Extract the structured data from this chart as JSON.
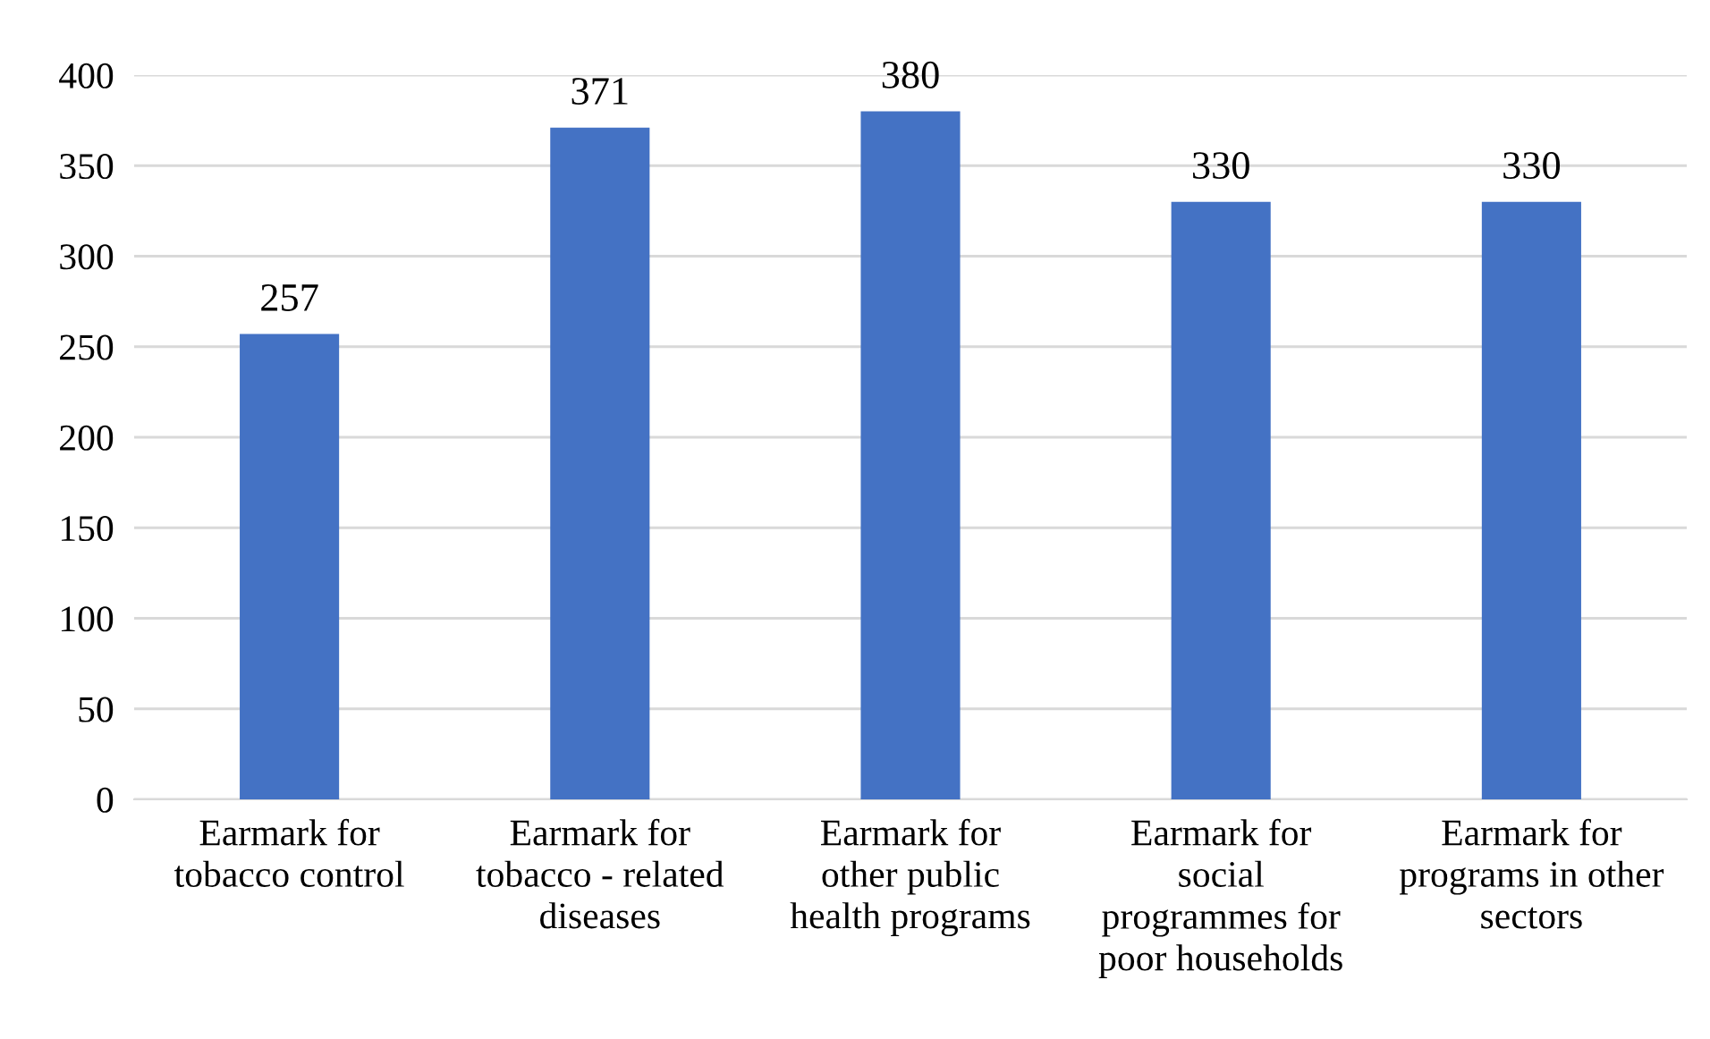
{
  "chart_data": {
    "type": "bar",
    "categories": [
      "Earmark for\ntobacco control",
      "Earmark for\ntobacco - related\ndiseases",
      "Earmark for\nother public\nhealth programs",
      "Earmark for\nsocial\nprogrammes for\npoor households",
      "Earmark for\nprograms in other\nsectors"
    ],
    "values": [
      257,
      371,
      380,
      330,
      330
    ],
    "color": "#4472c4",
    "ylim": [
      0,
      400
    ],
    "yticks": [
      0,
      50,
      100,
      150,
      200,
      250,
      300,
      350,
      400
    ],
    "grid": "y",
    "data_labels": true
  }
}
